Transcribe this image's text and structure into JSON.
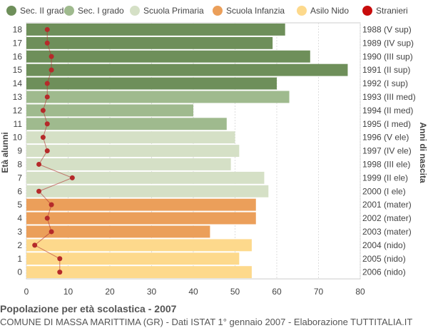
{
  "chart_data": {
    "type": "bar",
    "orientation": "horizontal",
    "title": "Popolazione per età scolastica - 2007",
    "subtitle": "COMUNE DI MASSA MARITTIMA (GR) - Dati ISTAT 1° gennaio 2007 - Elaborazione TUTTITALIA.IT",
    "ylabel_left": "Età alunni",
    "ylabel_right": "Anni di nascita",
    "xlim": [
      0,
      80
    ],
    "xticks": [
      0,
      10,
      20,
      30,
      40,
      50,
      60,
      70,
      80
    ],
    "grid": true,
    "legend_position": "top",
    "legend": [
      {
        "name": "Sec. II grado",
        "color": "#6e8f5a"
      },
      {
        "name": "Sec. I grado",
        "color": "#9fba8e"
      },
      {
        "name": "Scuola Primaria",
        "color": "#d5e0c6"
      },
      {
        "name": "Scuola Infanzia",
        "color": "#eb9f5a"
      },
      {
        "name": "Asilo Nido",
        "color": "#fdd98c"
      },
      {
        "name": "Stranieri",
        "color": "#c80c0c"
      }
    ],
    "rows": [
      {
        "age": "18",
        "birth": "1988 (V sup)",
        "value": 62,
        "stranieri": 5,
        "group": 0
      },
      {
        "age": "17",
        "birth": "1989 (IV sup)",
        "value": 59,
        "stranieri": 5,
        "group": 0
      },
      {
        "age": "16",
        "birth": "1990 (III sup)",
        "value": 68,
        "stranieri": 6,
        "group": 0
      },
      {
        "age": "15",
        "birth": "1991 (II sup)",
        "value": 77,
        "stranieri": 6,
        "group": 0
      },
      {
        "age": "14",
        "birth": "1992 (I sup)",
        "value": 60,
        "stranieri": 5,
        "group": 0
      },
      {
        "age": "13",
        "birth": "1993 (III med)",
        "value": 63,
        "stranieri": 5,
        "group": 1
      },
      {
        "age": "12",
        "birth": "1994 (II med)",
        "value": 40,
        "stranieri": 4,
        "group": 1
      },
      {
        "age": "11",
        "birth": "1995 (I med)",
        "value": 48,
        "stranieri": 5,
        "group": 1
      },
      {
        "age": "10",
        "birth": "1996 (V ele)",
        "value": 50,
        "stranieri": 4,
        "group": 2
      },
      {
        "age": "9",
        "birth": "1997 (IV ele)",
        "value": 51,
        "stranieri": 5,
        "group": 2
      },
      {
        "age": "8",
        "birth": "1998 (III ele)",
        "value": 49,
        "stranieri": 3,
        "group": 2
      },
      {
        "age": "7",
        "birth": "1999 (II ele)",
        "value": 57,
        "stranieri": 11,
        "group": 2
      },
      {
        "age": "6",
        "birth": "2000 (I ele)",
        "value": 58,
        "stranieri": 3,
        "group": 2
      },
      {
        "age": "5",
        "birth": "2001 (mater)",
        "value": 55,
        "stranieri": 6,
        "group": 3
      },
      {
        "age": "4",
        "birth": "2002 (mater)",
        "value": 55,
        "stranieri": 5,
        "group": 3
      },
      {
        "age": "3",
        "birth": "2003 (mater)",
        "value": 44,
        "stranieri": 6,
        "group": 3
      },
      {
        "age": "2",
        "birth": "2004 (nido)",
        "value": 54,
        "stranieri": 2,
        "group": 4
      },
      {
        "age": "1",
        "birth": "2005 (nido)",
        "value": 51,
        "stranieri": 8,
        "group": 4
      },
      {
        "age": "0",
        "birth": "2006 (nido)",
        "value": 54,
        "stranieri": 8,
        "group": 4
      }
    ]
  }
}
